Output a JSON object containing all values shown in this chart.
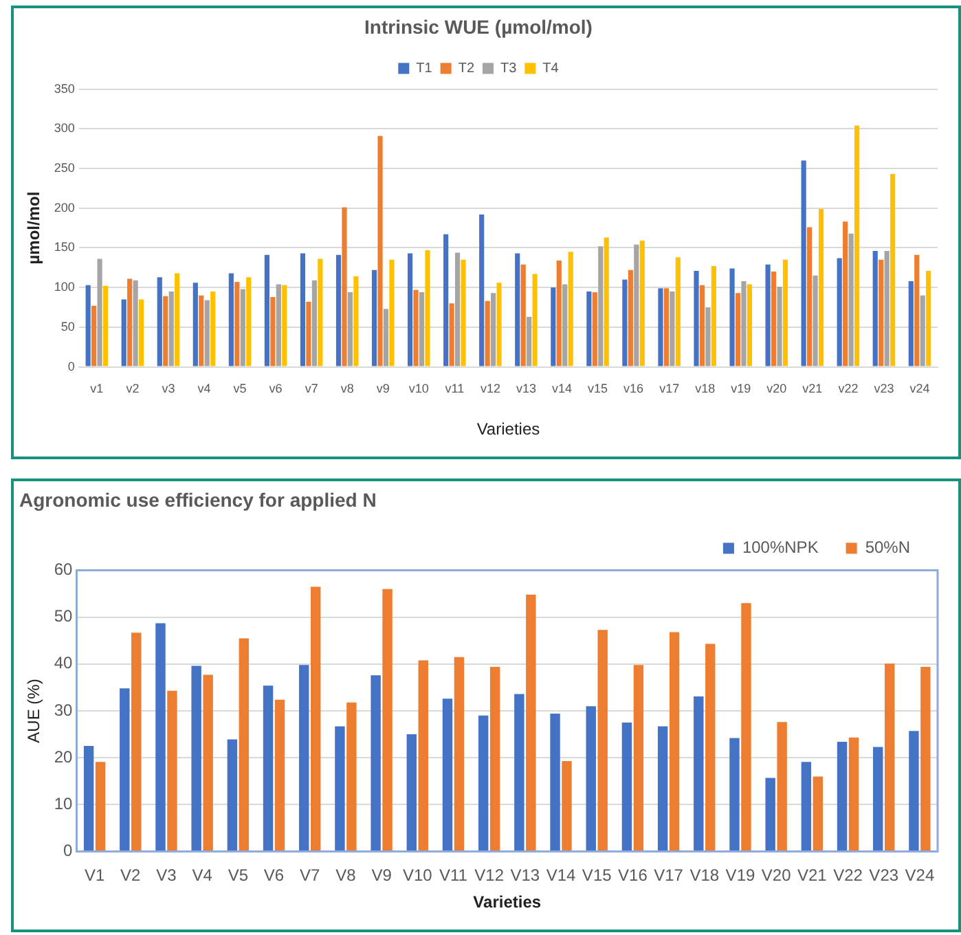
{
  "chart_data": [
    {
      "type": "bar",
      "title": "Intrinsic WUE (µmol/mol)",
      "xlabel": "Varieties",
      "ylabel": "µmol/mol",
      "categories": [
        "v1",
        "v2",
        "v3",
        "v4",
        "v5",
        "v6",
        "v7",
        "v8",
        "v9",
        "v10",
        "v11",
        "v12",
        "v13",
        "v14",
        "v15",
        "v16",
        "v17",
        "v18",
        "v19",
        "v20",
        "v21",
        "v22",
        "v23",
        "v24"
      ],
      "series": [
        {
          "name": "T1",
          "color": "#4472c4",
          "values": [
            103,
            85,
            113,
            106,
            118,
            141,
            143,
            141,
            122,
            143,
            167,
            192,
            143,
            100,
            95,
            110,
            99,
            121,
            124,
            129,
            260,
            137,
            146,
            108
          ]
        },
        {
          "name": "T2",
          "color": "#ed7d31",
          "values": [
            77,
            111,
            89,
            90,
            107,
            88,
            82,
            201,
            291,
            97,
            80,
            83,
            129,
            134,
            94,
            122,
            99,
            103,
            93,
            120,
            176,
            183,
            135,
            141
          ]
        },
        {
          "name": "T3",
          "color": "#a5a5a5",
          "values": [
            136,
            109,
            95,
            84,
            98,
            104,
            109,
            94,
            73,
            94,
            144,
            93,
            63,
            104,
            152,
            154,
            95,
            75,
            108,
            101,
            115,
            168,
            146,
            90
          ]
        },
        {
          "name": "T4",
          "color": "#ffc000",
          "values": [
            102,
            85,
            118,
            95,
            113,
            103,
            136,
            114,
            135,
            147,
            135,
            106,
            117,
            145,
            163,
            159,
            138,
            127,
            104,
            135,
            199,
            304,
            243,
            121
          ]
        }
      ],
      "ylim": [
        0,
        350
      ],
      "yticks": [
        0,
        50,
        100,
        150,
        200,
        250,
        300,
        350
      ],
      "grid": "y",
      "legend": "top"
    },
    {
      "type": "bar",
      "title": "Agronomic use efficiency for applied N",
      "xlabel": "Varieties",
      "ylabel": "AUE (%)",
      "categories": [
        "V1",
        "V2",
        "V3",
        "V4",
        "V5",
        "V6",
        "V7",
        "V8",
        "V9",
        "V10",
        "V11",
        "V12",
        "V13",
        "V14",
        "V15",
        "V16",
        "V17",
        "V18",
        "V19",
        "V20",
        "V21",
        "V22",
        "V23",
        "V24"
      ],
      "series": [
        {
          "name": "100%NPK",
          "color": "#4472c4",
          "values": [
            22.5,
            34.8,
            48.7,
            39.6,
            23.9,
            35.4,
            39.8,
            26.7,
            37.6,
            25,
            32.6,
            29,
            33.6,
            29.4,
            31,
            27.5,
            26.7,
            33.1,
            24.2,
            15.7,
            19.1,
            23.4,
            22.3,
            25.7
          ]
        },
        {
          "name": "50%N",
          "color": "#ed7d31",
          "values": [
            19.1,
            46.7,
            34.3,
            37.7,
            45.5,
            32.4,
            56.5,
            31.8,
            56,
            40.8,
            41.5,
            39.4,
            54.8,
            19.3,
            47.3,
            39.8,
            46.8,
            44.3,
            53,
            27.6,
            16,
            24.3,
            40.1,
            39.4
          ]
        }
      ],
      "ylim": [
        0,
        60
      ],
      "yticks": [
        0,
        10,
        20,
        30,
        40,
        50,
        60
      ],
      "grid": "y",
      "legend": "top right"
    }
  ]
}
